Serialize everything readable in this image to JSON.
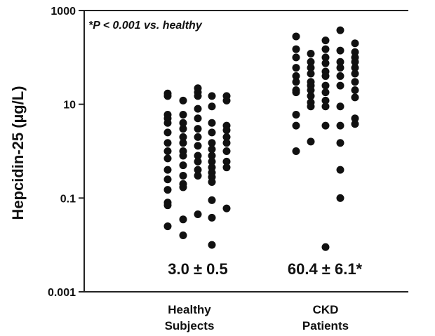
{
  "chart_data": {
    "type": "scatter",
    "ylabel": "Hepcidin-25 (µg/L)",
    "yscale": "log",
    "ylim": [
      0.001,
      1000
    ],
    "yticks": [
      {
        "value": 1000,
        "label": "1000"
      },
      {
        "value": 10,
        "label": "10"
      },
      {
        "value": 0.1,
        "label": "0.1"
      },
      {
        "value": 0.001,
        "label": "0.001"
      }
    ],
    "annotation": "*P < 0.001 vs. healthy",
    "color": "#111111",
    "groups": [
      {
        "label_line1": "Healthy",
        "label_line2": "Subjects",
        "summary": "3.0 ± 0.5",
        "columns": [
          [
            17,
            15,
            6,
            5,
            4,
            2.5,
            1.5,
            1,
            0.7,
            0.4,
            0.25,
            0.15,
            0.08,
            0.07,
            0.025
          ],
          [
            12,
            6,
            4,
            3,
            2,
            1.5,
            1,
            0.8,
            0.5,
            0.3,
            0.2,
            0.17,
            0.035,
            0.016
          ],
          [
            22,
            18,
            15,
            8,
            5,
            3,
            2,
            1.3,
            0.8,
            0.6,
            0.4,
            0.3,
            0.045
          ],
          [
            15,
            9,
            4,
            2.5,
            1.5,
            1.1,
            0.8,
            0.6,
            0.45,
            0.35,
            0.28,
            0.22,
            0.09,
            0.038,
            0.01
          ],
          [
            15,
            12,
            3.5,
            2.8,
            2,
            1.5,
            1,
            0.6,
            0.45,
            0.06
          ]
        ]
      },
      {
        "label_line1": "CKD",
        "label_line2": "Patients",
        "summary": "60.4 ± 6.1*",
        "columns": [
          [
            280,
            150,
            100,
            60,
            40,
            30,
            20,
            18,
            6,
            3.5,
            1
          ],
          [
            120,
            80,
            60,
            45,
            30,
            25,
            20,
            15,
            11,
            9,
            1.6
          ],
          [
            230,
            150,
            100,
            75,
            50,
            40,
            25,
            18,
            12,
            9,
            3.5,
            0.009
          ],
          [
            380,
            140,
            80,
            60,
            40,
            25,
            9,
            3.5,
            1.5,
            0.4,
            0.1
          ],
          [
            200,
            130,
            100,
            80,
            60,
            45,
            30,
            20,
            14,
            5,
            3.8
          ]
        ]
      }
    ]
  }
}
